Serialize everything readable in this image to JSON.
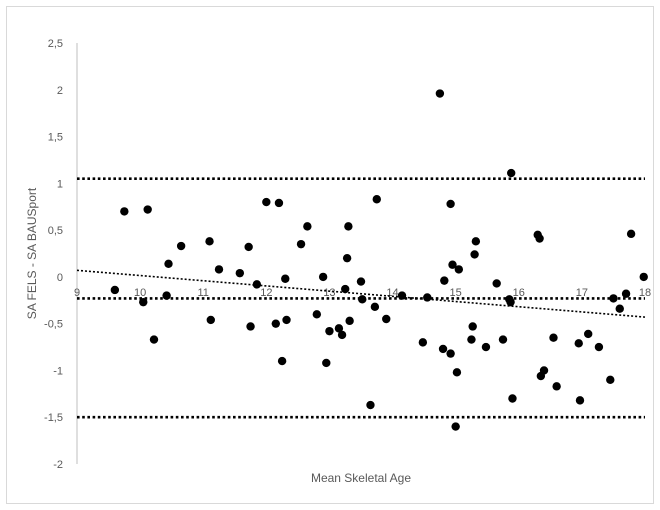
{
  "chart_data": {
    "type": "scatter",
    "xlabel": "Mean Skeletal Age",
    "ylabel": "SA FELS - SA BAUSport",
    "xlim": [
      9,
      18
    ],
    "ylim": [
      -2,
      2.5
    ],
    "x_ticks": [
      "9",
      "10",
      "11",
      "12",
      "13",
      "14",
      "15",
      "16",
      "17",
      "18"
    ],
    "y_ticks": [
      "2,5",
      "2",
      "1,5",
      "1",
      "0,5",
      "0",
      "-0,5",
      "-1",
      "-1,5",
      "-2"
    ],
    "grid": false,
    "reference_lines": [
      {
        "kind": "horizontal",
        "y": 1.05,
        "style": "dotted"
      },
      {
        "kind": "horizontal",
        "y": -0.23,
        "style": "dotted"
      },
      {
        "kind": "horizontal",
        "y": -1.5,
        "style": "dotted"
      },
      {
        "kind": "trendline",
        "x": [
          9,
          18
        ],
        "y": [
          0.07,
          -0.43
        ],
        "style": "dotted"
      }
    ],
    "points": [
      [
        9.6,
        -0.14
      ],
      [
        9.75,
        0.7
      ],
      [
        10.05,
        -0.27
      ],
      [
        10.12,
        0.72
      ],
      [
        10.22,
        -0.67
      ],
      [
        10.42,
        -0.2
      ],
      [
        10.45,
        0.14
      ],
      [
        10.65,
        0.33
      ],
      [
        11.1,
        0.38
      ],
      [
        11.12,
        -0.46
      ],
      [
        11.25,
        0.08
      ],
      [
        11.58,
        0.04
      ],
      [
        11.72,
        0.32
      ],
      [
        11.75,
        -0.53
      ],
      [
        11.85,
        -0.08
      ],
      [
        12.0,
        0.8
      ],
      [
        12.15,
        -0.5
      ],
      [
        12.2,
        0.79
      ],
      [
        12.25,
        -0.9
      ],
      [
        12.3,
        -0.02
      ],
      [
        12.32,
        -0.46
      ],
      [
        12.55,
        0.35
      ],
      [
        12.65,
        0.54
      ],
      [
        12.8,
        -0.4
      ],
      [
        12.9,
        0.0
      ],
      [
        12.95,
        -0.92
      ],
      [
        13.0,
        -0.58
      ],
      [
        13.15,
        -0.55
      ],
      [
        13.2,
        -0.62
      ],
      [
        13.25,
        -0.13
      ],
      [
        13.28,
        0.2
      ],
      [
        13.3,
        0.54
      ],
      [
        13.32,
        -0.47
      ],
      [
        13.5,
        -0.05
      ],
      [
        13.52,
        -0.24
      ],
      [
        13.65,
        -1.37
      ],
      [
        13.72,
        -0.32
      ],
      [
        13.75,
        0.83
      ],
      [
        13.9,
        -0.45
      ],
      [
        14.15,
        -0.2
      ],
      [
        14.48,
        -0.7
      ],
      [
        14.55,
        -0.22
      ],
      [
        14.75,
        1.96
      ],
      [
        14.8,
        -0.77
      ],
      [
        14.82,
        -0.04
      ],
      [
        14.92,
        0.78
      ],
      [
        14.92,
        -0.82
      ],
      [
        14.95,
        0.13
      ],
      [
        15.0,
        -1.6
      ],
      [
        15.02,
        -1.02
      ],
      [
        15.05,
        0.08
      ],
      [
        15.25,
        -0.67
      ],
      [
        15.27,
        -0.53
      ],
      [
        15.3,
        0.24
      ],
      [
        15.32,
        0.38
      ],
      [
        15.48,
        -0.75
      ],
      [
        15.65,
        -0.07
      ],
      [
        15.75,
        -0.67
      ],
      [
        15.85,
        -0.24
      ],
      [
        15.87,
        -0.27
      ],
      [
        15.88,
        1.11
      ],
      [
        15.9,
        -1.3
      ],
      [
        16.3,
        0.45
      ],
      [
        16.33,
        0.41
      ],
      [
        16.35,
        -1.06
      ],
      [
        16.4,
        -1.0
      ],
      [
        16.55,
        -0.65
      ],
      [
        16.6,
        -1.17
      ],
      [
        16.95,
        -0.71
      ],
      [
        16.97,
        -1.32
      ],
      [
        17.1,
        -0.61
      ],
      [
        17.27,
        -0.75
      ],
      [
        17.45,
        -1.1
      ],
      [
        17.5,
        -0.23
      ],
      [
        17.6,
        -0.34
      ],
      [
        17.7,
        -0.18
      ],
      [
        17.78,
        0.46
      ],
      [
        17.98,
        0.0
      ]
    ]
  }
}
